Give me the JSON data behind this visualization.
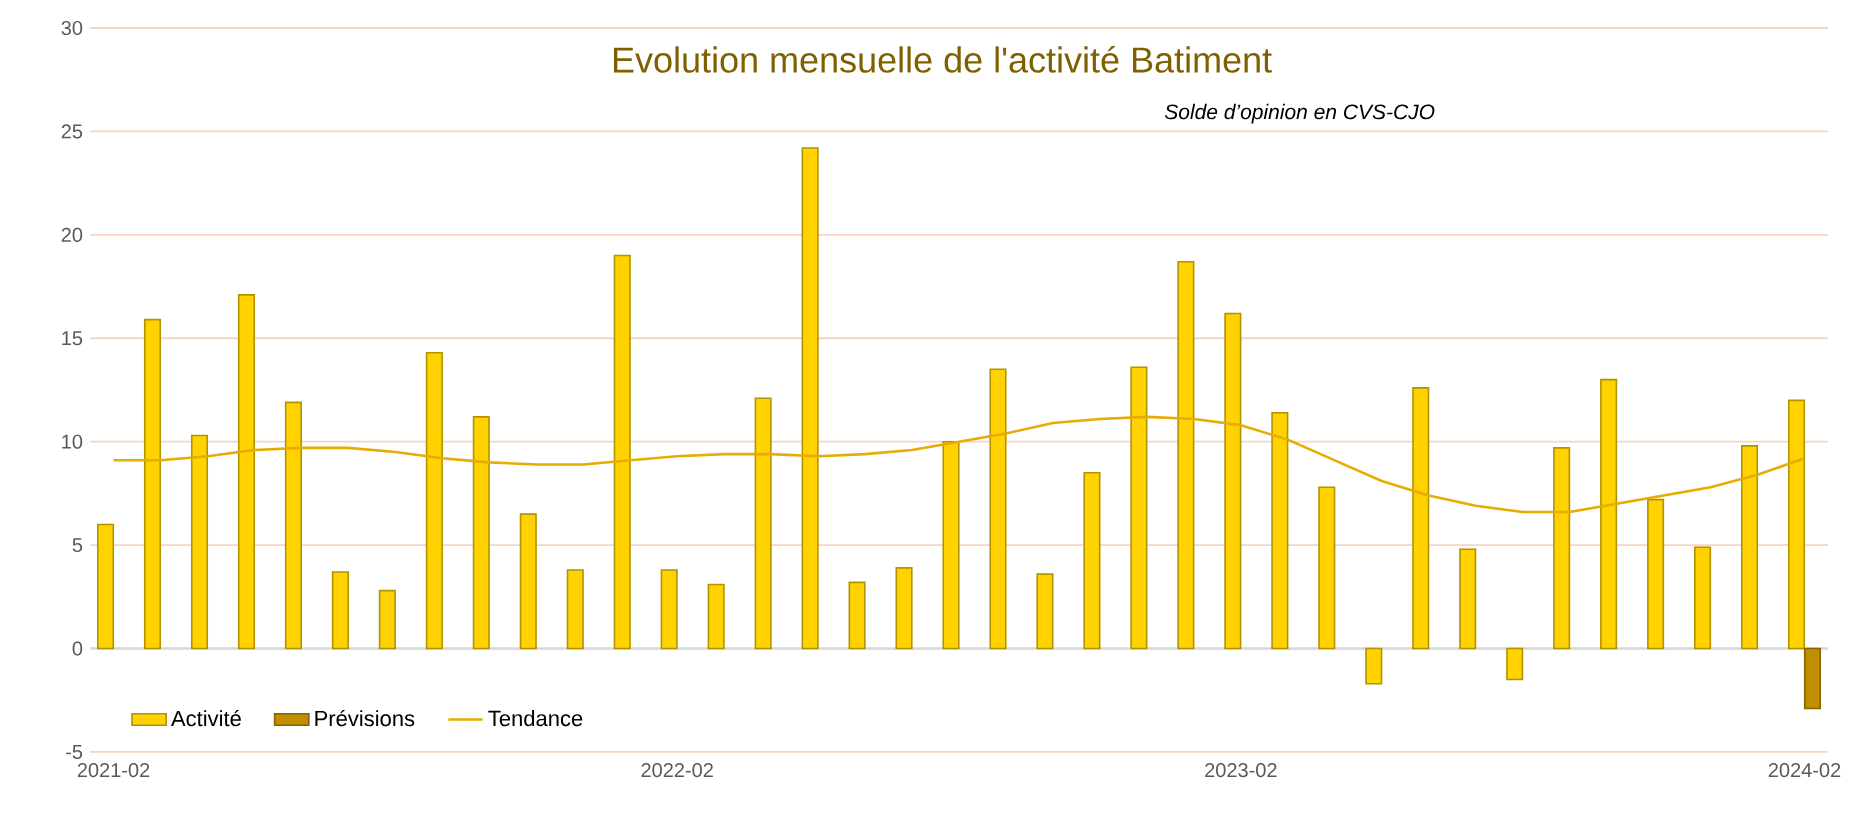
{
  "chart_data": {
    "type": "bar",
    "title": "Evolution mensuelle de l'activité Batiment",
    "subtitle": "Solde d’opinion en CVS-CJO",
    "categories": [
      "2021-02",
      null,
      null,
      null,
      null,
      null,
      null,
      null,
      null,
      null,
      null,
      null,
      "2022-02",
      null,
      null,
      null,
      null,
      null,
      null,
      null,
      null,
      null,
      null,
      null,
      "2023-02",
      null,
      null,
      null,
      null,
      null,
      null,
      null,
      null,
      null,
      null,
      null,
      "2024-02"
    ],
    "series": [
      {
        "name": "Activité",
        "color": "#FFD200",
        "values": [
          6.0,
          15.9,
          10.3,
          17.1,
          11.9,
          3.7,
          2.8,
          14.3,
          11.2,
          6.5,
          3.8,
          19.0,
          3.8,
          3.1,
          12.1,
          24.2,
          3.2,
          3.9,
          10.0,
          13.5,
          3.6,
          8.5,
          13.6,
          18.7,
          16.2,
          11.4,
          7.8,
          -1.7,
          12.6,
          4.8,
          -1.5,
          9.7,
          13.0,
          7.2,
          4.9,
          9.8,
          12.0
        ]
      },
      {
        "name": "Prévisions",
        "color": "#BF8F00",
        "values": [
          null,
          null,
          null,
          null,
          null,
          null,
          null,
          null,
          null,
          null,
          null,
          null,
          null,
          null,
          null,
          null,
          null,
          null,
          null,
          null,
          null,
          null,
          null,
          null,
          null,
          null,
          null,
          null,
          null,
          null,
          null,
          null,
          null,
          null,
          null,
          null,
          -2.9
        ]
      },
      {
        "name": "Tendance",
        "type": "line",
        "color": "#E6AC00",
        "values": [
          9.1,
          9.1,
          9.3,
          9.6,
          9.7,
          9.7,
          9.5,
          9.2,
          9.0,
          8.9,
          8.9,
          9.1,
          9.3,
          9.4,
          9.4,
          9.3,
          9.4,
          9.6,
          10.0,
          10.4,
          10.9,
          11.1,
          11.2,
          11.1,
          10.8,
          10.1,
          9.1,
          8.1,
          7.4,
          6.9,
          6.6,
          6.6,
          7.0,
          7.4,
          7.8,
          8.4,
          9.2
        ]
      }
    ],
    "ylim": [
      -5,
      30
    ],
    "yticks": [
      -5,
      0,
      5,
      10,
      15,
      20,
      25,
      30
    ],
    "grid": "y",
    "legend": "bottom left"
  }
}
